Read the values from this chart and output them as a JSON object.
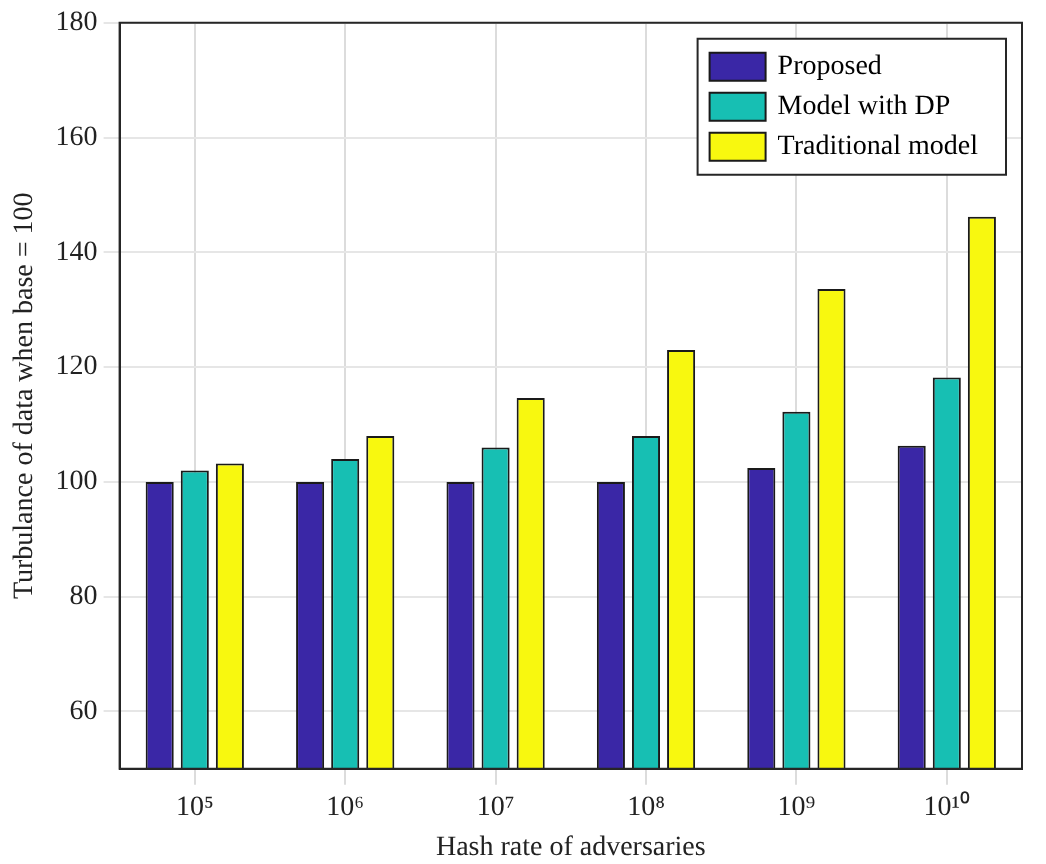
{
  "chart_data": {
    "type": "bar",
    "xlabel": "Hash rate of adversaries",
    "ylabel": "Turbulance of data when base = 100",
    "categories": [
      "10⁵",
      "10⁶",
      "10⁷",
      "10⁸",
      "10⁹",
      "10¹⁰"
    ],
    "series": [
      {
        "name": "Proposed",
        "color": "#3a27a6",
        "values": [
          100,
          100,
          100,
          100,
          102.4,
          106.3
        ]
      },
      {
        "name": "Model with DP",
        "color": "#17bfb3",
        "values": [
          102,
          104,
          106,
          108,
          112.2,
          118.2
        ]
      },
      {
        "name": "Traditional model",
        "color": "#f8f80f",
        "values": [
          103.2,
          108,
          114.6,
          123,
          133.6,
          146.2
        ]
      }
    ],
    "ylim": [
      50,
      180
    ],
    "yticks": [
      60,
      80,
      100,
      120,
      140,
      160,
      180
    ],
    "grid": true,
    "legend": "top right"
  }
}
